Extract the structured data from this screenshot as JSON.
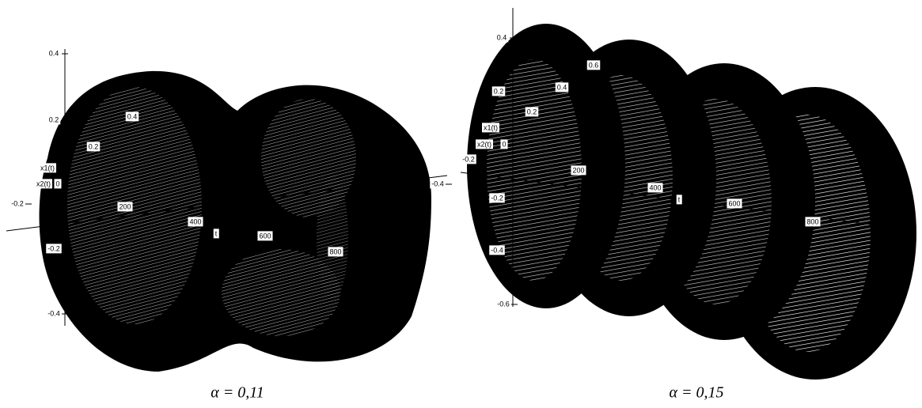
{
  "panels": [
    {
      "caption": "α = 0,11",
      "labels": [
        "0.4",
        "0.2",
        "-0.4",
        "0.4",
        "0.2",
        "x1(t)",
        "x2(t)",
        "0",
        "200",
        "400",
        "t",
        "600",
        "800",
        "-0.2",
        "-0.2",
        "-0.4"
      ]
    },
    {
      "caption": "α = 0,15",
      "labels": [
        "0.4",
        "0.6",
        "0.4",
        "0.2",
        "0.2",
        "x1(t)",
        "x2(t)",
        "0",
        "-0.2",
        "200",
        "400",
        "t",
        "600",
        "800",
        "-0.2",
        "-0.4",
        "-0.6"
      ]
    }
  ]
}
